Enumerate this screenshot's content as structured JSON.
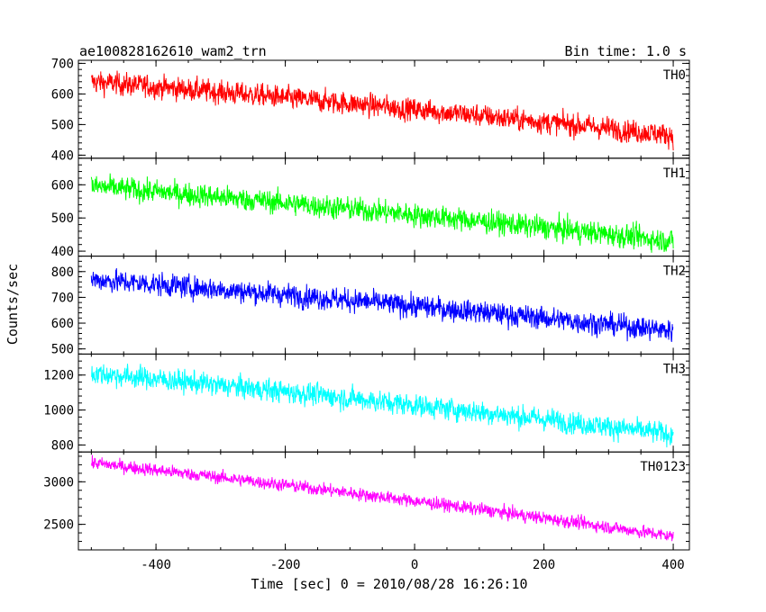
{
  "header": {
    "title": "ae100828162610_wam2_trn",
    "bin_time": "Bin time: 1.0 s"
  },
  "chart_data": {
    "type": "line",
    "title": "ae100828162610_wam2_trn",
    "subtitle": "Bin time: 1.0 s",
    "xlabel": "Time [sec] 0 = 2010/08/28 16:26:10",
    "ylabel": "Counts/sec",
    "xlim": [
      -520,
      425
    ],
    "x_ticks": [
      -400,
      -200,
      0,
      200,
      400
    ],
    "x_range": [
      -500,
      400
    ],
    "panels": [
      {
        "name": "TH0",
        "color": "#ff0000",
        "ylim": [
          390,
          710
        ],
        "y_ticks": [
          400,
          500,
          600,
          700
        ],
        "start": 640,
        "end": 465,
        "noise": 32
      },
      {
        "name": "TH1",
        "color": "#00ff00",
        "ylim": [
          385,
          680
        ],
        "y_ticks": [
          400,
          500,
          600
        ],
        "start": 595,
        "end": 430,
        "noise": 30
      },
      {
        "name": "TH2",
        "color": "#0000ff",
        "ylim": [
          480,
          860
        ],
        "y_ticks": [
          500,
          600,
          700,
          800
        ],
        "start": 770,
        "end": 570,
        "noise": 38
      },
      {
        "name": "TH3",
        "color": "#00ffff",
        "ylim": [
          760,
          1320
        ],
        "y_ticks": [
          800,
          1000,
          1200
        ],
        "start": 1210,
        "end": 860,
        "noise": 55
      },
      {
        "name": "TH0123",
        "color": "#ff00ff",
        "ylim": [
          2200,
          3350
        ],
        "y_ticks": [
          2500,
          3000
        ],
        "start": 3220,
        "end": 2360,
        "noise": 65
      }
    ]
  }
}
